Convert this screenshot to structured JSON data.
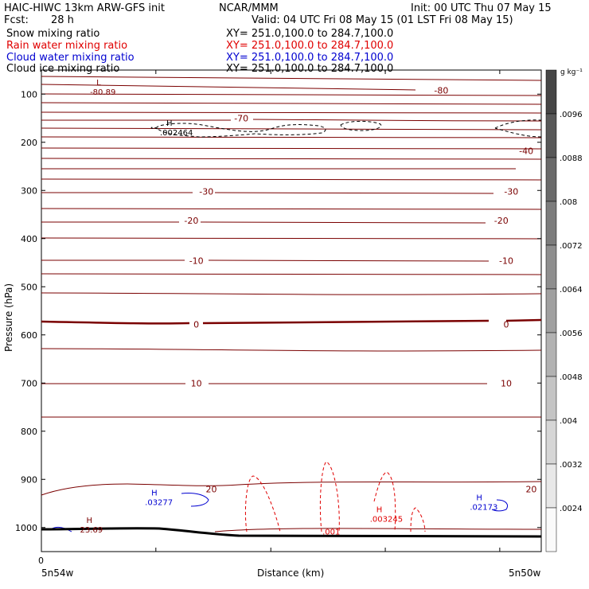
{
  "header": {
    "model": "HAIC-HIWC 13km ARW-GFS init",
    "org": "NCAR/MMM",
    "init": "Init: 00 UTC Thu 07 May 15",
    "fcst_label": "Fcst:",
    "fcst_value": "28 h",
    "valid": "Valid: 04 UTC Fri 08 May 15 (01 LST Fri 08 May 15)"
  },
  "fields": [
    {
      "name": "Snow mixing ratio",
      "xy": "XY= 251.0,100.0 to 284.7,100.0",
      "color": "#000000"
    },
    {
      "name": "Rain water mixing ratio",
      "xy": "XY= 251.0,100.0 to 284.7,100.0",
      "color": "#e00000"
    },
    {
      "name": "Cloud water mixing ratio",
      "xy": "XY= 251.0,100.0 to 284.7,100.0",
      "color": "#0000d0"
    },
    {
      "name": "Cloud ice mixing ratio",
      "xy": "XY= 251.0,100.0 to 284.7,100.0",
      "color": "#000000"
    }
  ],
  "chart_data": {
    "type": "contour",
    "ylabel": "Pressure (hPa)",
    "xlabel": "Distance (km)",
    "x_left_label": "5n54w",
    "x_right_label": "5n50w",
    "x_zero_label": "0",
    "y_ticks": [
      100,
      200,
      300,
      400,
      500,
      600,
      700,
      800,
      900,
      1000
    ],
    "ylim": [
      1050,
      50
    ],
    "temperature_labels": [
      {
        "value": "-80",
        "p": 92,
        "d": 0.8
      },
      {
        "value": "-70",
        "p": 150,
        "d": 0.4
      },
      {
        "value": "-40",
        "p": 218,
        "d": 0.97
      },
      {
        "value": "-30",
        "p": 302,
        "d": 0.33,
        "also_at": 0.94
      },
      {
        "value": "-20",
        "p": 362,
        "d": 0.3,
        "also_at": 0.92
      },
      {
        "value": "-10",
        "p": 446,
        "d": 0.31,
        "also_at": 0.93
      },
      {
        "value": "0",
        "p": 578,
        "d": 0.31,
        "also_at": 0.93
      },
      {
        "value": "10",
        "p": 700,
        "d": 0.31,
        "also_at": 0.93
      },
      {
        "value": "20",
        "p": 920,
        "d": 0.34,
        "also_at": 0.98
      }
    ],
    "extrema": [
      {
        "type": "L",
        "value": "-80.89",
        "color": "#7a0000",
        "p": 88,
        "d": 0.11
      },
      {
        "type": "H",
        "value": ".002464",
        "color": "#000000",
        "p": 172,
        "d": 0.25
      },
      {
        "type": "H",
        "value": ".03277",
        "color": "#0000d0",
        "p": 940,
        "d": 0.22
      },
      {
        "type": "H",
        "value": "23.69",
        "color": "#7a0000",
        "p": 997,
        "d": 0.09
      },
      {
        "type": "H",
        "value": ".003245",
        "color": "#e00000",
        "p": 975,
        "d": 0.67
      },
      {
        "type": "H",
        "value": ".02173",
        "color": "#0000d0",
        "p": 950,
        "d": 0.87
      }
    ],
    "rain_label": {
      "value": ".001",
      "color": "#e00000",
      "p": 1008,
      "d": 0.58
    }
  },
  "colorbar": {
    "unit_label": "g kg⁻¹",
    "levels": [
      ".0096",
      ".0088",
      ".008",
      ".0072",
      ".0064",
      ".0056",
      ".0048",
      ".004",
      ".0032",
      ".0024"
    ]
  },
  "colors": {
    "isotherm": "#7a0000",
    "rain": "#e00000",
    "cloud_water": "#0000d0",
    "ground": "#000000"
  }
}
